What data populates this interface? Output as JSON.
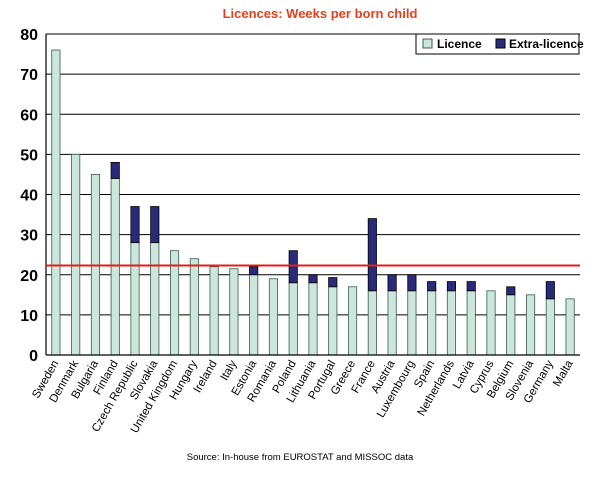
{
  "chart_data": {
    "type": "bar",
    "stacked": true,
    "title": "Licences: Weeks per born child",
    "source": "Source: In-house from EUROSTAT and MISSOC data",
    "ylim": [
      0,
      80
    ],
    "yticks": [
      0,
      10,
      20,
      30,
      40,
      50,
      60,
      70,
      80
    ],
    "grid": true,
    "legend_position": "top-right",
    "reference_line": 22.3,
    "categories": [
      "Sweden",
      "Denmark",
      "Bulgaria",
      "Finland",
      "Czech Republic",
      "Slovakia",
      "United Kingdom",
      "Hungary",
      "Ireland",
      "Italy",
      "Estonia",
      "Romania",
      "Poland",
      "Lithuania",
      "Portugal",
      "Greece",
      "France",
      "Austria",
      "Luxembourg",
      "Spain",
      "Netherlands",
      "Latvia",
      "Cyprus",
      "Belgium",
      "Slovenia",
      "Germany",
      "Malta"
    ],
    "series": [
      {
        "name": "Licence",
        "color": "#cce6dc",
        "values": [
          76,
          50,
          45,
          44,
          28,
          28,
          26,
          24,
          22,
          21.5,
          20,
          19,
          18,
          18,
          17,
          17,
          16,
          16,
          16,
          16,
          16,
          16,
          16,
          15,
          15,
          14,
          14
        ]
      },
      {
        "name": "Extra-licence",
        "color": "#2a2a7a",
        "values": [
          0,
          0,
          0,
          4,
          9,
          9,
          0,
          0,
          0,
          0,
          2,
          0,
          8,
          2,
          2.3,
          0,
          18,
          4,
          4,
          2.3,
          2.3,
          2.3,
          0,
          2,
          0,
          4.3,
          0
        ]
      }
    ],
    "colors": {
      "reference_line": "#e0201c",
      "title": "#e8401c",
      "bar_outline": "#3a5a50"
    }
  }
}
